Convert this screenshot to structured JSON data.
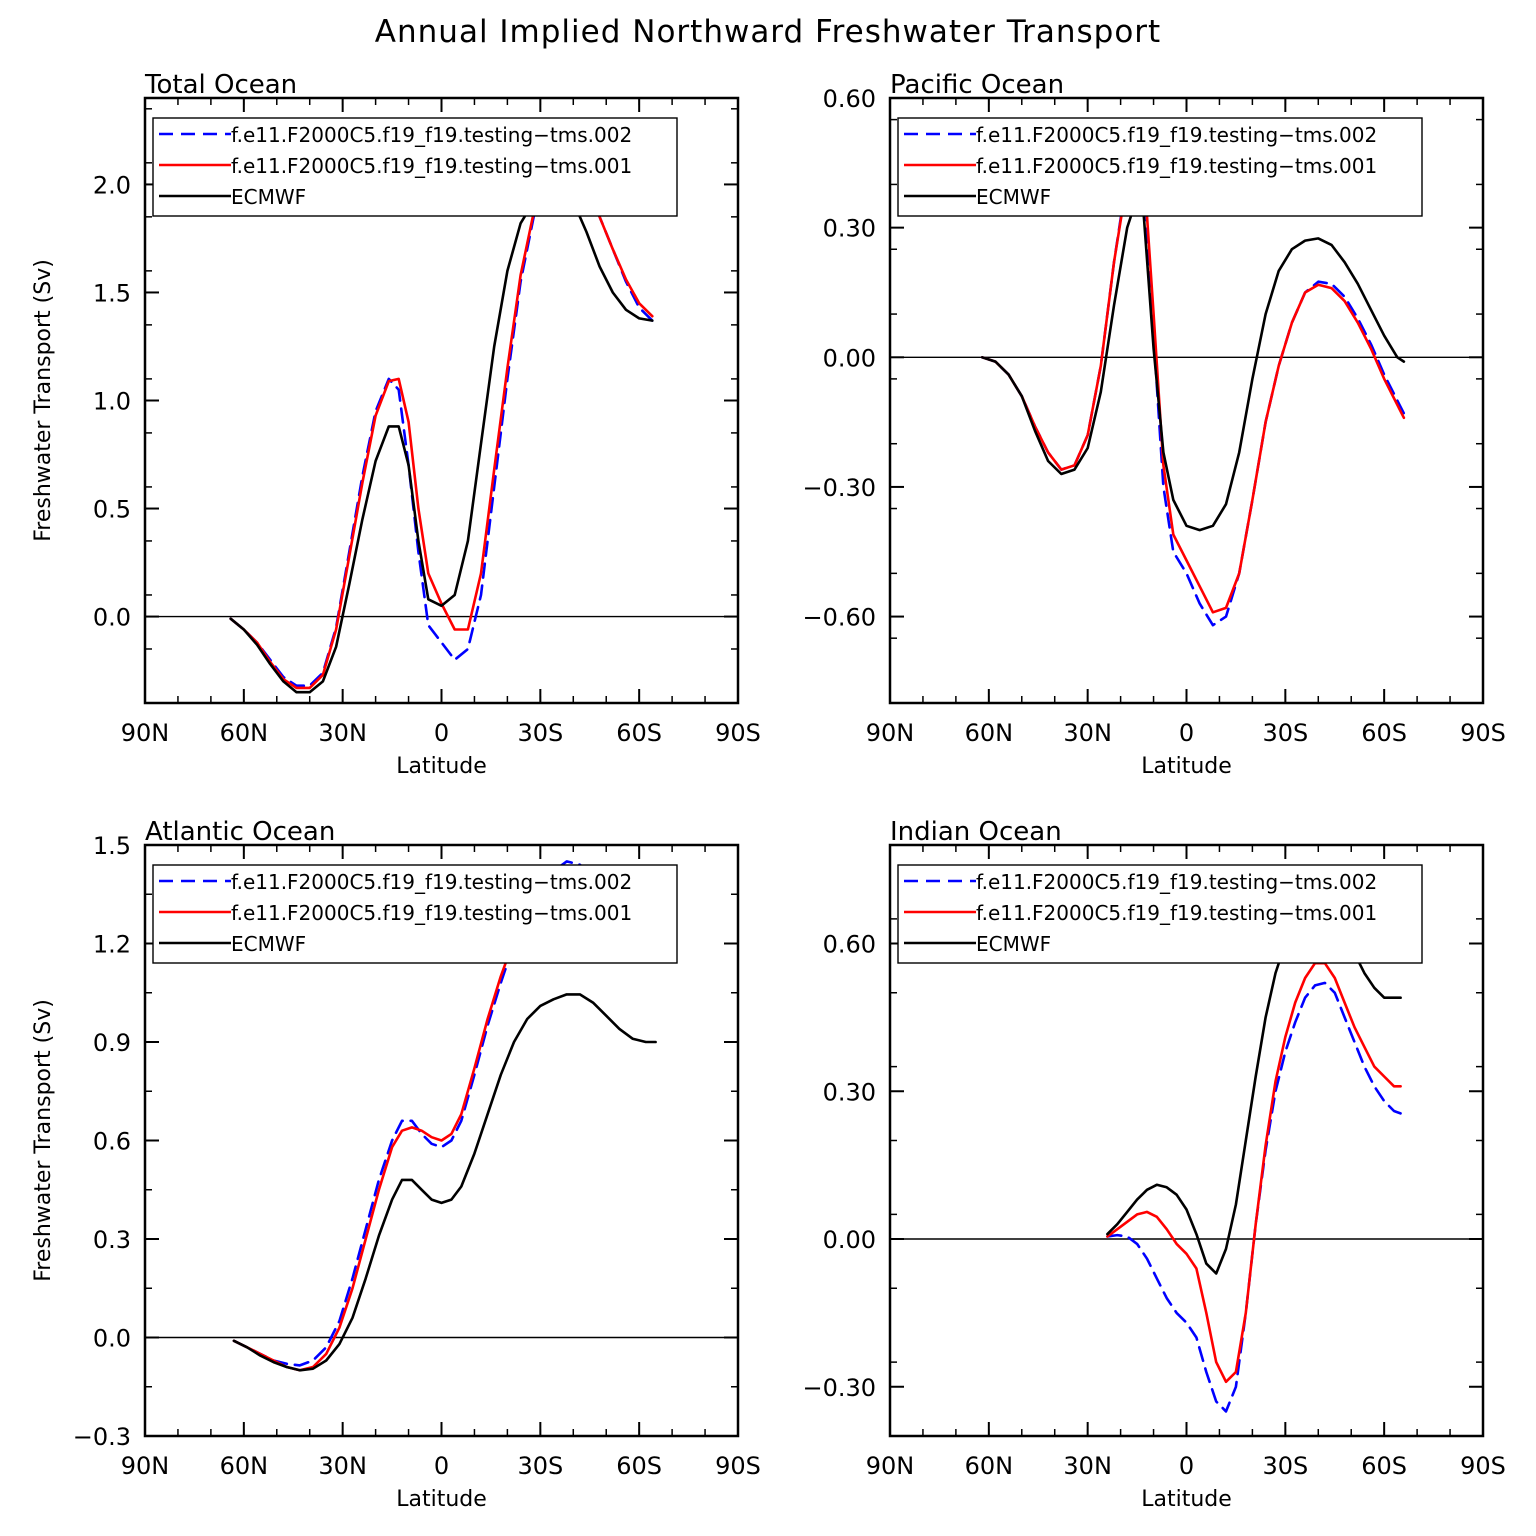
{
  "title": "Annual Implied Northward Freshwater Transport",
  "legend_entries": [
    {
      "name": "f.e11.F2000C5.f19_f19.testing−tms.002",
      "color": "#0000ff",
      "dash": true
    },
    {
      "name": "f.e11.F2000C5.f19_f19.testing−tms.001",
      "color": "#ff0000",
      "dash": false
    },
    {
      "name": "ECMWF",
      "color": "#000000",
      "dash": false
    }
  ],
  "chart_data": [
    {
      "type": "line",
      "title": "Total Ocean",
      "xlabel": "Latitude",
      "ylabel": "Freshwater Transport (Sv)",
      "xlim": [
        90,
        -90
      ],
      "ylim": [
        -0.4,
        2.4
      ],
      "yticks": [
        0.0,
        0.5,
        1.0,
        1.5,
        2.0
      ],
      "ytick_labels": [
        "0.0",
        "0.5",
        "1.0",
        "1.5",
        "2.0"
      ],
      "xticks": [
        90,
        60,
        30,
        0,
        -30,
        -60,
        -90
      ],
      "xtick_labels": [
        "90N",
        "60N",
        "30N",
        "0",
        "30S",
        "60S",
        "90S"
      ],
      "x": [
        64,
        60,
        56,
        52,
        48,
        44,
        40,
        36,
        32,
        28,
        24,
        20,
        16,
        13,
        10,
        7,
        4,
        0,
        -4,
        -8,
        -12,
        -16,
        -20,
        -24,
        -28,
        -32,
        -36,
        -40,
        -44,
        -48,
        -52,
        -56,
        -60,
        -64
      ],
      "series": [
        {
          "name": "f.e11.F2000C5.f19_f19.testing−tms.002",
          "color": "#0000ff",
          "dash": true,
          "values": [
            -0.01,
            -0.06,
            -0.12,
            -0.2,
            -0.28,
            -0.32,
            -0.32,
            -0.26,
            -0.05,
            0.3,
            0.65,
            0.95,
            1.1,
            1.05,
            0.7,
            0.3,
            -0.04,
            -0.12,
            -0.2,
            -0.15,
            0.1,
            0.6,
            1.1,
            1.55,
            1.85,
            2.05,
            2.14,
            2.13,
            2.0,
            1.85,
            1.7,
            1.55,
            1.43,
            1.37
          ]
        },
        {
          "name": "f.e11.F2000C5.f19_f19.testing−tms.001",
          "color": "#ff0000",
          "dash": false,
          "values": [
            -0.01,
            -0.06,
            -0.12,
            -0.21,
            -0.29,
            -0.33,
            -0.33,
            -0.27,
            -0.06,
            0.28,
            0.62,
            0.93,
            1.09,
            1.1,
            0.9,
            0.5,
            0.2,
            0.06,
            -0.06,
            -0.06,
            0.2,
            0.68,
            1.15,
            1.58,
            1.87,
            2.07,
            2.15,
            2.12,
            2.0,
            1.85,
            1.7,
            1.56,
            1.45,
            1.39
          ]
        },
        {
          "name": "ECMWF",
          "color": "#000000",
          "dash": false,
          "values": [
            -0.01,
            -0.06,
            -0.13,
            -0.22,
            -0.3,
            -0.35,
            -0.35,
            -0.3,
            -0.14,
            0.15,
            0.45,
            0.72,
            0.88,
            0.88,
            0.7,
            0.35,
            0.08,
            0.05,
            0.1,
            0.35,
            0.8,
            1.25,
            1.6,
            1.82,
            1.92,
            2.0,
            2.01,
            1.92,
            1.78,
            1.62,
            1.5,
            1.42,
            1.38,
            1.37
          ]
        }
      ]
    },
    {
      "type": "line",
      "title": "Pacific Ocean",
      "xlabel": "Latitude",
      "ylabel": "",
      "xlim": [
        90,
        -90
      ],
      "ylim": [
        -0.8,
        0.6
      ],
      "yticks": [
        -0.6,
        -0.3,
        0.0,
        0.3,
        0.6
      ],
      "ytick_labels": [
        "−0.60",
        "−0.30",
        "0.00",
        "0.30",
        "0.60"
      ],
      "xticks": [
        90,
        60,
        30,
        0,
        -30,
        -60,
        -90
      ],
      "xtick_labels": [
        "90N",
        "60N",
        "30N",
        "0",
        "30S",
        "60S",
        "90S"
      ],
      "x": [
        62,
        58,
        54,
        50,
        46,
        42,
        38,
        34,
        30,
        26,
        22,
        18,
        15,
        13,
        10,
        7,
        4,
        0,
        -4,
        -8,
        -12,
        -16,
        -20,
        -24,
        -28,
        -32,
        -36,
        -40,
        -44,
        -48,
        -52,
        -56,
        -60,
        -64,
        -66
      ],
      "series": [
        {
          "name": "f.e11.F2000C5.f19_f19.testing−tms.002",
          "color": "#0000ff",
          "dash": true,
          "values": [
            0.0,
            -0.01,
            -0.04,
            -0.09,
            -0.16,
            -0.22,
            -0.26,
            -0.25,
            -0.18,
            -0.02,
            0.22,
            0.42,
            0.47,
            0.43,
            0.05,
            -0.3,
            -0.45,
            -0.5,
            -0.57,
            -0.62,
            -0.6,
            -0.5,
            -0.33,
            -0.15,
            -0.02,
            0.08,
            0.15,
            0.175,
            0.17,
            0.14,
            0.09,
            0.03,
            -0.04,
            -0.1,
            -0.13
          ]
        },
        {
          "name": "f.e11.F2000C5.f19_f19.testing−tms.001",
          "color": "#ff0000",
          "dash": false,
          "values": [
            0.0,
            -0.01,
            -0.04,
            -0.09,
            -0.16,
            -0.22,
            -0.26,
            -0.25,
            -0.18,
            -0.02,
            0.22,
            0.41,
            0.46,
            0.44,
            0.1,
            -0.25,
            -0.41,
            -0.47,
            -0.53,
            -0.59,
            -0.58,
            -0.5,
            -0.33,
            -0.15,
            -0.02,
            0.08,
            0.15,
            0.168,
            0.16,
            0.13,
            0.08,
            0.02,
            -0.05,
            -0.11,
            -0.14
          ]
        },
        {
          "name": "ECMWF",
          "color": "#000000",
          "dash": false,
          "values": [
            0.0,
            -0.01,
            -0.04,
            -0.09,
            -0.17,
            -0.24,
            -0.27,
            -0.26,
            -0.21,
            -0.08,
            0.12,
            0.3,
            0.37,
            0.33,
            0.02,
            -0.22,
            -0.33,
            -0.39,
            -0.4,
            -0.39,
            -0.34,
            -0.22,
            -0.05,
            0.1,
            0.2,
            0.25,
            0.27,
            0.275,
            0.26,
            0.22,
            0.17,
            0.11,
            0.05,
            0.0,
            -0.01
          ]
        }
      ]
    },
    {
      "type": "line",
      "title": "Atlantic Ocean",
      "xlabel": "Latitude",
      "ylabel": "Freshwater Transport (Sv)",
      "xlim": [
        90,
        -90
      ],
      "ylim": [
        -0.3,
        1.5
      ],
      "yticks": [
        -0.3,
        0.0,
        0.3,
        0.6,
        0.9,
        1.2,
        1.5
      ],
      "ytick_labels": [
        "−0.3",
        "0.0",
        "0.3",
        "0.6",
        "0.9",
        "1.2",
        "1.5"
      ],
      "xticks": [
        90,
        60,
        30,
        0,
        -30,
        -60,
        -90
      ],
      "xtick_labels": [
        "90N",
        "60N",
        "30N",
        "0",
        "30S",
        "60S",
        "90S"
      ],
      "x": [
        63,
        59,
        55,
        51,
        47,
        43,
        39,
        35,
        31,
        27,
        23,
        19,
        15,
        12,
        9,
        6,
        3,
        0,
        -3,
        -6,
        -10,
        -14,
        -18,
        -22,
        -26,
        -30,
        -34,
        -38,
        -42,
        -46,
        -50,
        -54,
        -58,
        -62,
        -65
      ],
      "series": [
        {
          "name": "f.e11.F2000C5.f19_f19.testing−tms.002",
          "color": "#0000ff",
          "dash": true,
          "values": [
            -0.01,
            -0.03,
            -0.05,
            -0.07,
            -0.08,
            -0.085,
            -0.07,
            -0.03,
            0.05,
            0.18,
            0.33,
            0.48,
            0.6,
            0.66,
            0.66,
            0.62,
            0.59,
            0.58,
            0.6,
            0.66,
            0.8,
            0.95,
            1.08,
            1.2,
            1.3,
            1.38,
            1.42,
            1.45,
            1.44,
            1.4,
            1.34,
            1.29,
            1.26,
            1.24,
            1.24
          ]
        },
        {
          "name": "f.e11.F2000C5.f19_f19.testing−tms.001",
          "color": "#ff0000",
          "dash": false,
          "values": [
            -0.01,
            -0.03,
            -0.05,
            -0.07,
            -0.09,
            -0.1,
            -0.09,
            -0.05,
            0.03,
            0.15,
            0.3,
            0.45,
            0.58,
            0.63,
            0.64,
            0.63,
            0.61,
            0.6,
            0.62,
            0.68,
            0.82,
            0.97,
            1.1,
            1.21,
            1.3,
            1.36,
            1.4,
            1.42,
            1.41,
            1.37,
            1.31,
            1.27,
            1.24,
            1.22,
            1.22
          ]
        },
        {
          "name": "ECMWF",
          "color": "#000000",
          "dash": false,
          "values": [
            -0.01,
            -0.03,
            -0.055,
            -0.075,
            -0.09,
            -0.1,
            -0.095,
            -0.07,
            -0.02,
            0.06,
            0.18,
            0.31,
            0.42,
            0.48,
            0.48,
            0.45,
            0.42,
            0.41,
            0.42,
            0.46,
            0.56,
            0.68,
            0.8,
            0.9,
            0.97,
            1.01,
            1.03,
            1.045,
            1.045,
            1.02,
            0.98,
            0.94,
            0.91,
            0.9,
            0.9
          ]
        }
      ]
    },
    {
      "type": "line",
      "title": "Indian Ocean",
      "xlabel": "Latitude",
      "ylabel": "",
      "xlim": [
        90,
        -90
      ],
      "ylim": [
        -0.4,
        0.8
      ],
      "yticks": [
        -0.3,
        0.0,
        0.3,
        0.6
      ],
      "ytick_labels": [
        "−0.30",
        "0.00",
        "0.30",
        "0.60"
      ],
      "xticks": [
        90,
        60,
        30,
        0,
        -30,
        -60,
        -90
      ],
      "xtick_labels": [
        "90N",
        "60N",
        "30N",
        "0",
        "30S",
        "60S",
        "90S"
      ],
      "x": [
        24,
        21,
        18,
        15,
        12,
        9,
        6,
        3,
        0,
        -3,
        -6,
        -9,
        -12,
        -15,
        -18,
        -21,
        -24,
        -27,
        -30,
        -33,
        -36,
        -39,
        -42,
        -45,
        -48,
        -51,
        -54,
        -57,
        -60,
        -63,
        -65
      ],
      "series": [
        {
          "name": "f.e11.F2000C5.f19_f19.testing−tms.002",
          "color": "#0000ff",
          "dash": true,
          "values": [
            0.005,
            0.008,
            0.005,
            -0.01,
            -0.04,
            -0.08,
            -0.12,
            -0.15,
            -0.17,
            -0.2,
            -0.27,
            -0.33,
            -0.35,
            -0.3,
            -0.15,
            0.03,
            0.18,
            0.3,
            0.38,
            0.44,
            0.49,
            0.515,
            0.52,
            0.5,
            0.45,
            0.4,
            0.35,
            0.31,
            0.28,
            0.26,
            0.255
          ]
        },
        {
          "name": "f.e11.F2000C5.f19_f19.testing−tms.001",
          "color": "#ff0000",
          "dash": false,
          "values": [
            0.005,
            0.02,
            0.035,
            0.05,
            0.055,
            0.045,
            0.02,
            -0.01,
            -0.03,
            -0.06,
            -0.15,
            -0.25,
            -0.29,
            -0.27,
            -0.15,
            0.03,
            0.19,
            0.32,
            0.41,
            0.48,
            0.53,
            0.56,
            0.56,
            0.53,
            0.48,
            0.43,
            0.39,
            0.35,
            0.33,
            0.31,
            0.31
          ]
        },
        {
          "name": "ECMWF",
          "color": "#000000",
          "dash": false,
          "values": [
            0.01,
            0.03,
            0.055,
            0.08,
            0.1,
            0.11,
            0.105,
            0.09,
            0.06,
            0.01,
            -0.05,
            -0.07,
            -0.02,
            0.07,
            0.2,
            0.33,
            0.45,
            0.54,
            0.6,
            0.65,
            0.69,
            0.7,
            0.695,
            0.67,
            0.63,
            0.58,
            0.54,
            0.51,
            0.49,
            0.49,
            0.49
          ]
        }
      ]
    }
  ]
}
